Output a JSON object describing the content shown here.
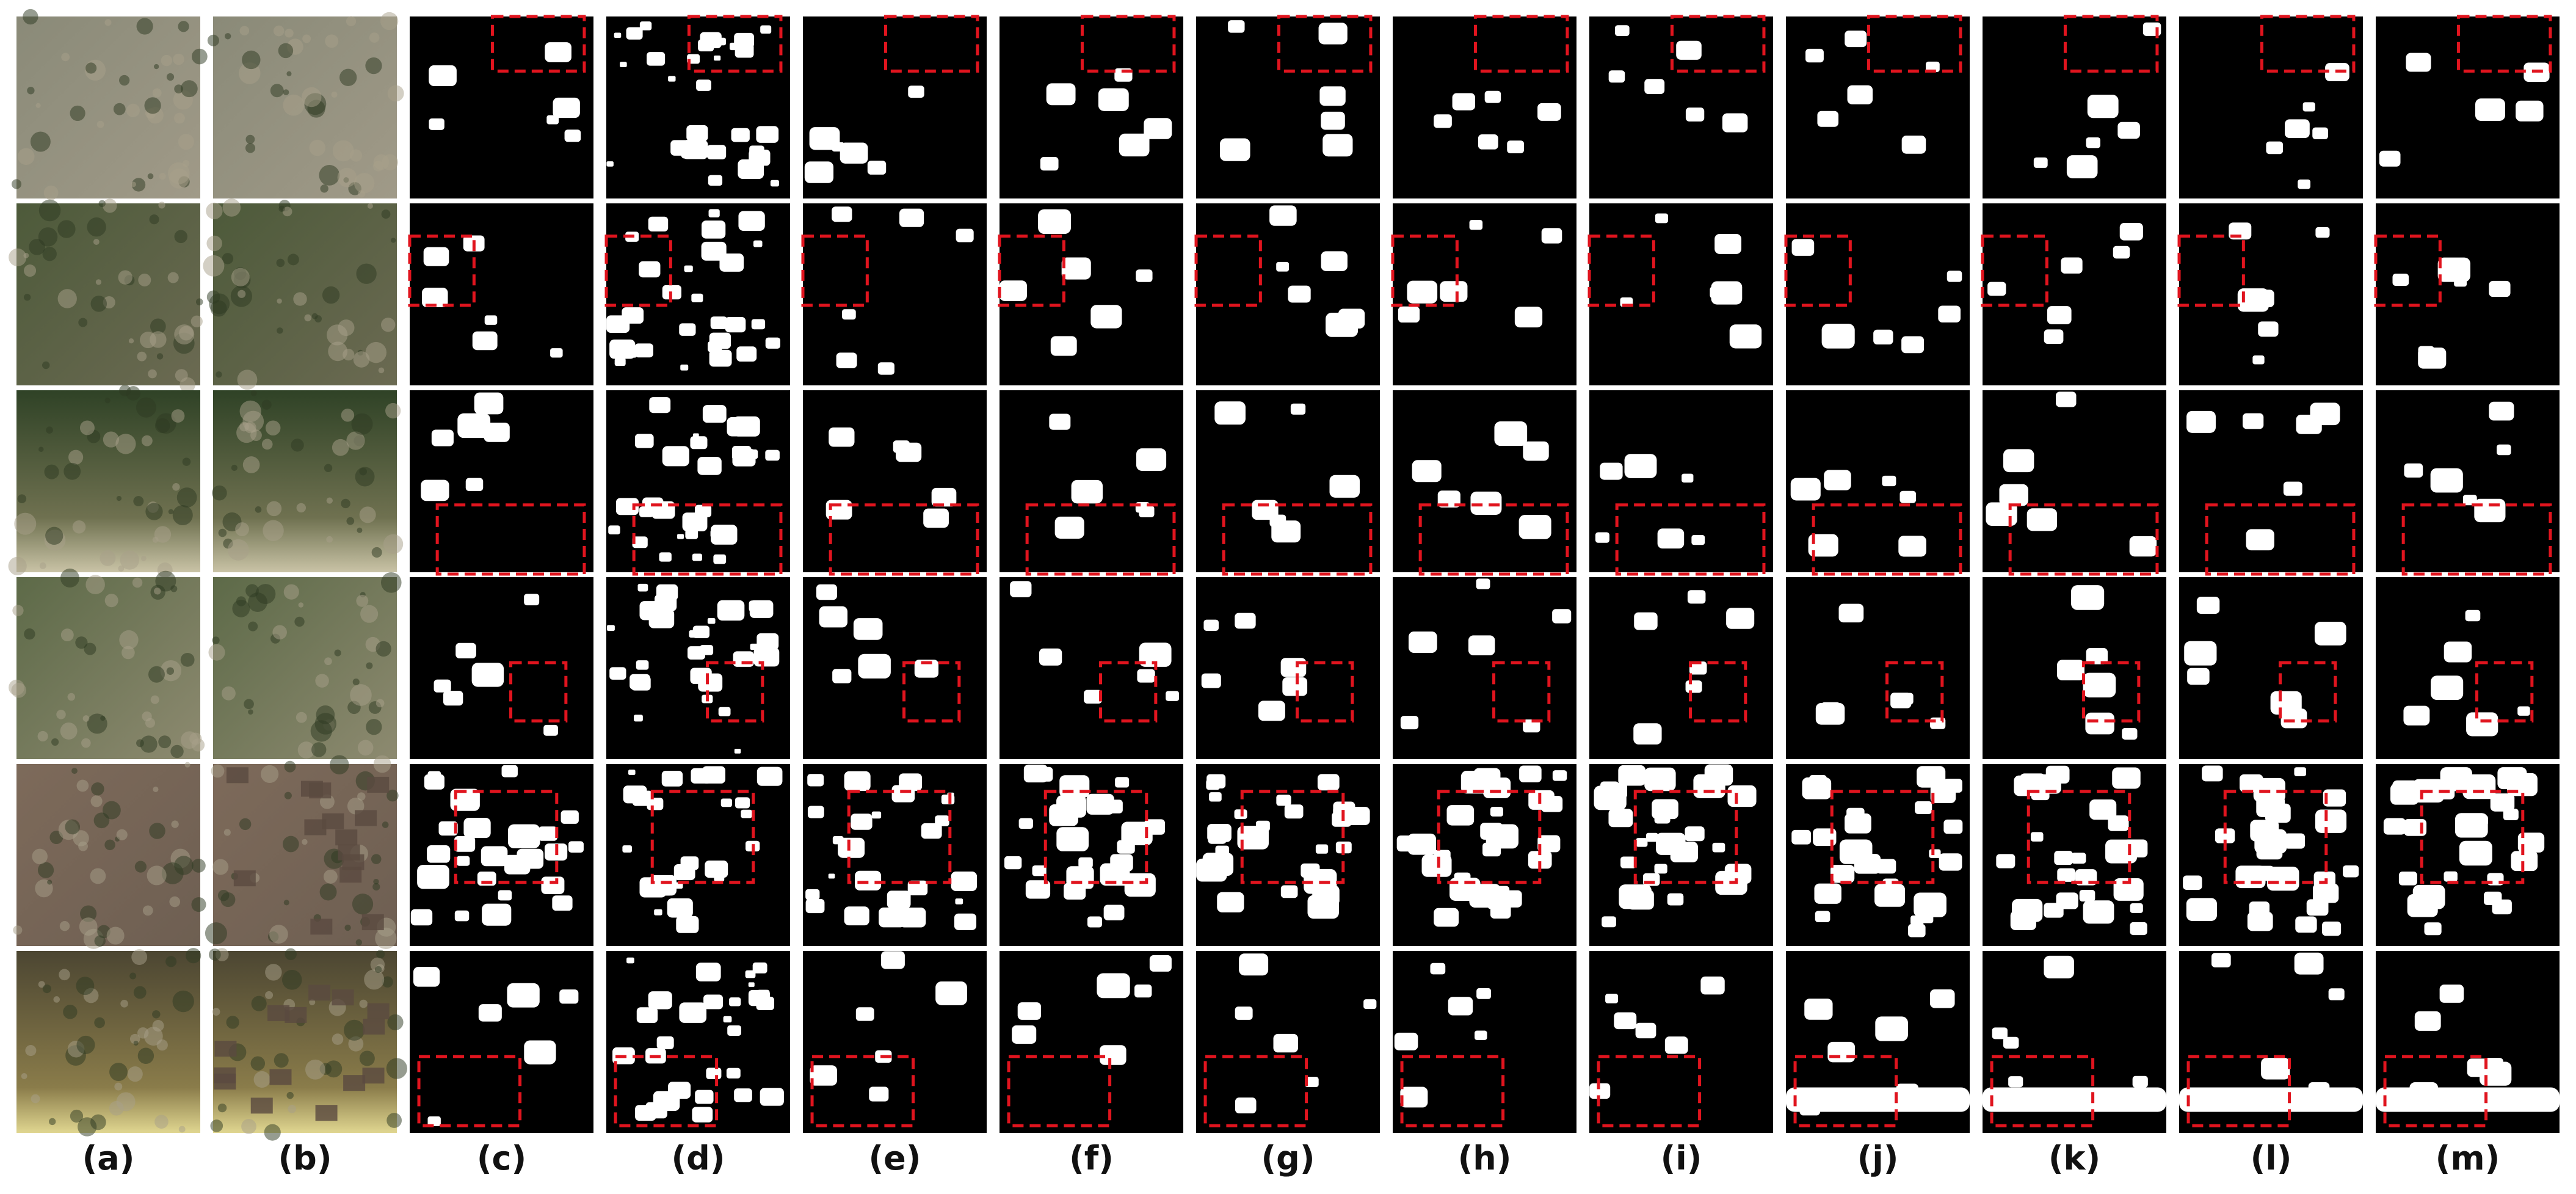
{
  "column_labels": [
    "(a)",
    "(b)",
    "(c)",
    "(d)",
    "(e)",
    "(f)",
    "(g)",
    "(h)",
    "(i)",
    "(j)",
    "(k)",
    "(l)",
    "(m)"
  ]
}
